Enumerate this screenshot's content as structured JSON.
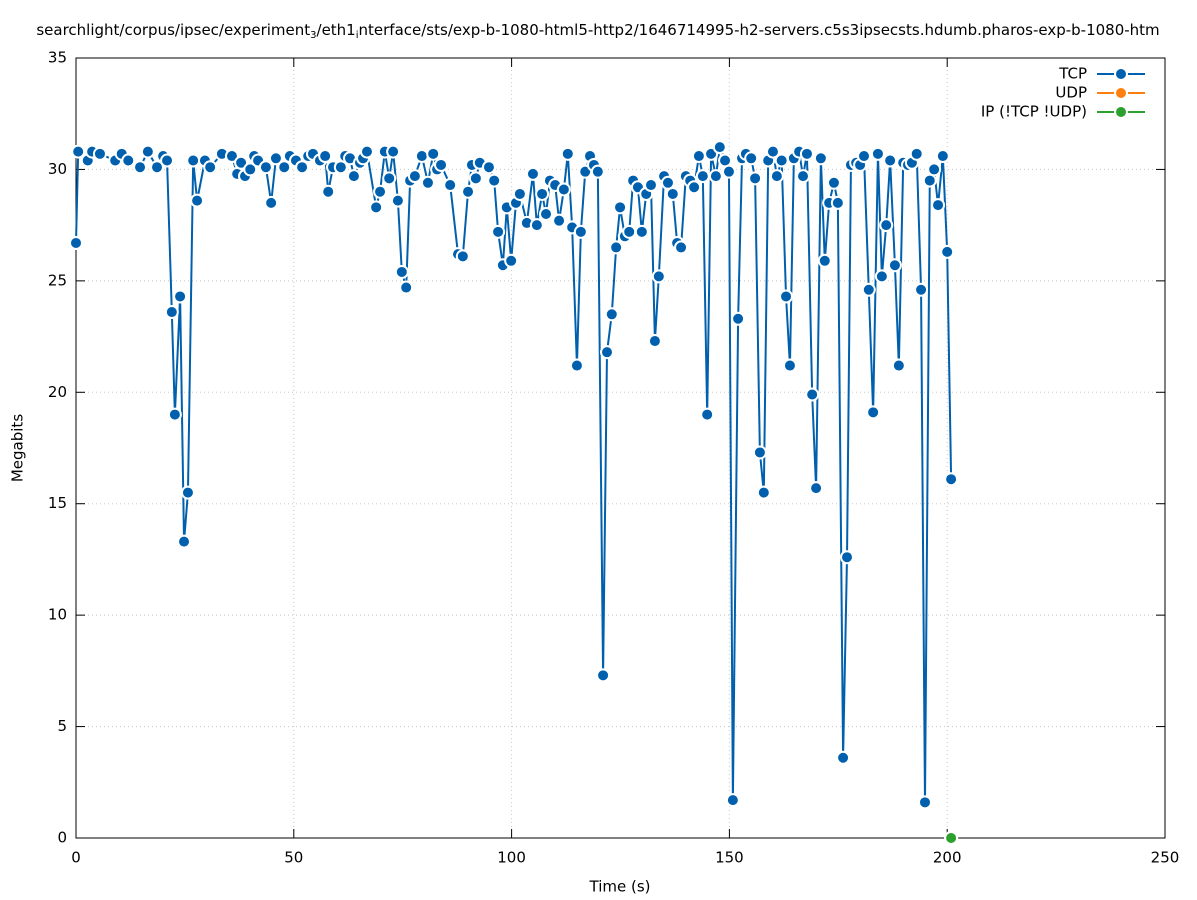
{
  "chart_data": {
    "type": "line",
    "title": [
      "searchlight/corpus/ipsec/experiment",
      "3",
      "/eth1",
      "i",
      "nterface/sts/exp-b-1080-html5-http2/1646714995-h2-servers.c5s3ipsecsts.hdumb.pharos-exp-b-1080-htm"
    ],
    "x_label": "Time (s)",
    "y_label": "Megabits",
    "xlim": [
      0,
      250
    ],
    "xticks": [
      0,
      50,
      100,
      150,
      200,
      250
    ],
    "ylim": [
      0,
      35
    ],
    "yticks": [
      0,
      5,
      10,
      15,
      20,
      25,
      30,
      35
    ],
    "grid": true,
    "legend": "top-right",
    "series": [
      {
        "name": "TCP",
        "color": "#0060ad",
        "x": [
          0,
          0.5,
          2.7,
          3.7,
          5.5,
          9,
          10.5,
          12,
          14.7,
          16.5,
          18.6,
          20,
          20.9,
          22,
          22.7,
          23.9,
          24.8,
          25.7,
          26.9,
          27.8,
          29.6,
          30.8,
          33.5,
          35.8,
          37,
          37.9,
          38.8,
          40,
          40.9,
          41.8,
          43.6,
          44.8,
          45.9,
          47.8,
          49.1,
          50.5,
          51.9,
          53.3,
          54.4,
          56,
          57.2,
          57.9,
          59,
          60.8,
          61.8,
          62.9,
          63.8,
          65.2,
          65.9,
          66.8,
          68.9,
          69.8,
          70.9,
          71.9,
          72.8,
          73.9,
          74.8,
          75.8,
          76.7,
          77.8,
          79.4,
          80.8,
          82,
          82.9,
          83.8,
          85.9,
          87.7,
          88.8,
          90,
          90.9,
          91.8,
          92.7,
          94.8,
          96,
          96.9,
          98,
          98.9,
          99.9,
          101,
          101.9,
          103.5,
          104.9,
          105.8,
          107,
          107.9,
          108.8,
          110,
          110.9,
          112,
          112.9,
          113.9,
          115,
          115.9,
          116.9,
          118,
          118.9,
          119.8,
          121,
          121.9,
          123,
          124,
          124.9,
          126,
          127,
          127.9,
          129,
          129.9,
          130.9,
          132,
          132.9,
          133.8,
          135,
          135.9,
          137,
          138,
          138.9,
          140,
          141,
          141.9,
          143,
          143.9,
          144.9,
          145.8,
          146.9,
          147.8,
          149,
          149.9,
          150.8,
          152,
          152.9,
          153.8,
          155,
          155.9,
          157,
          157.9,
          158.9,
          160,
          160.9,
          162,
          163,
          163.9,
          164.8,
          166,
          166.9,
          167.8,
          169,
          169.9,
          171,
          171.9,
          172.9,
          174,
          174.9,
          176.1,
          177,
          177.9,
          179.1,
          180,
          180.9,
          182,
          183,
          184.1,
          185,
          186,
          186.9,
          188,
          188.9,
          189.9,
          191,
          191.9,
          193,
          194,
          194.9,
          196,
          197,
          197.9,
          199,
          200,
          200.9
        ],
        "values": [
          26.7,
          30.8,
          30.4,
          30.8,
          30.7,
          30.4,
          30.7,
          30.4,
          30.1,
          30.8,
          30.1,
          30.6,
          30.4,
          23.6,
          19.0,
          24.3,
          13.3,
          15.5,
          30.4,
          28.6,
          30.4,
          30.1,
          30.7,
          30.6,
          29.8,
          30.3,
          29.7,
          30.0,
          30.6,
          30.4,
          30.1,
          28.5,
          30.5,
          30.1,
          30.6,
          30.4,
          30.1,
          30.6,
          30.7,
          30.4,
          30.6,
          29.0,
          30.1,
          30.1,
          30.6,
          30.5,
          29.7,
          30.3,
          30.5,
          30.8,
          28.3,
          29.0,
          30.8,
          29.6,
          30.8,
          28.6,
          25.4,
          24.7,
          29.5,
          29.7,
          30.6,
          29.4,
          30.7,
          30.0,
          30.2,
          29.3,
          26.2,
          26.1,
          29.0,
          30.2,
          29.6,
          30.3,
          30.1,
          29.5,
          27.2,
          25.7,
          28.3,
          25.9,
          28.5,
          28.9,
          27.6,
          29.8,
          27.5,
          28.9,
          28.0,
          29.5,
          29.3,
          27.7,
          29.1,
          30.7,
          27.4,
          21.2,
          27.2,
          29.9,
          30.6,
          30.2,
          29.9,
          7.3,
          21.8,
          23.5,
          26.5,
          28.3,
          27.0,
          27.2,
          29.5,
          29.2,
          27.2,
          28.9,
          29.3,
          22.3,
          25.2,
          29.7,
          29.4,
          28.9,
          26.7,
          26.5,
          29.7,
          29.5,
          29.2,
          30.6,
          29.7,
          19.0,
          30.7,
          29.7,
          31.0,
          30.4,
          29.9,
          1.7,
          23.3,
          30.5,
          30.7,
          30.5,
          29.6,
          17.3,
          15.5,
          30.4,
          30.8,
          29.7,
          30.4,
          24.3,
          21.2,
          30.5,
          30.8,
          29.7,
          30.7,
          19.9,
          15.7,
          30.5,
          25.9,
          28.5,
          29.4,
          28.5,
          3.6,
          12.6,
          30.2,
          30.3,
          30.2,
          30.6,
          24.6,
          19.1,
          30.7,
          25.2,
          27.5,
          30.4,
          25.7,
          21.2,
          30.3,
          30.2,
          30.3,
          30.7,
          24.6,
          1.6,
          29.5,
          30.0,
          28.4,
          30.6,
          26.3,
          16.1
        ]
      },
      {
        "name": "UDP",
        "color": "#ff7f0e",
        "x": [
          200.9
        ],
        "values": [
          0
        ]
      },
      {
        "name": "IP (!TCP  !UDP)",
        "color": "#2ca02c",
        "x": [
          200.9
        ],
        "values": [
          0
        ]
      }
    ]
  }
}
